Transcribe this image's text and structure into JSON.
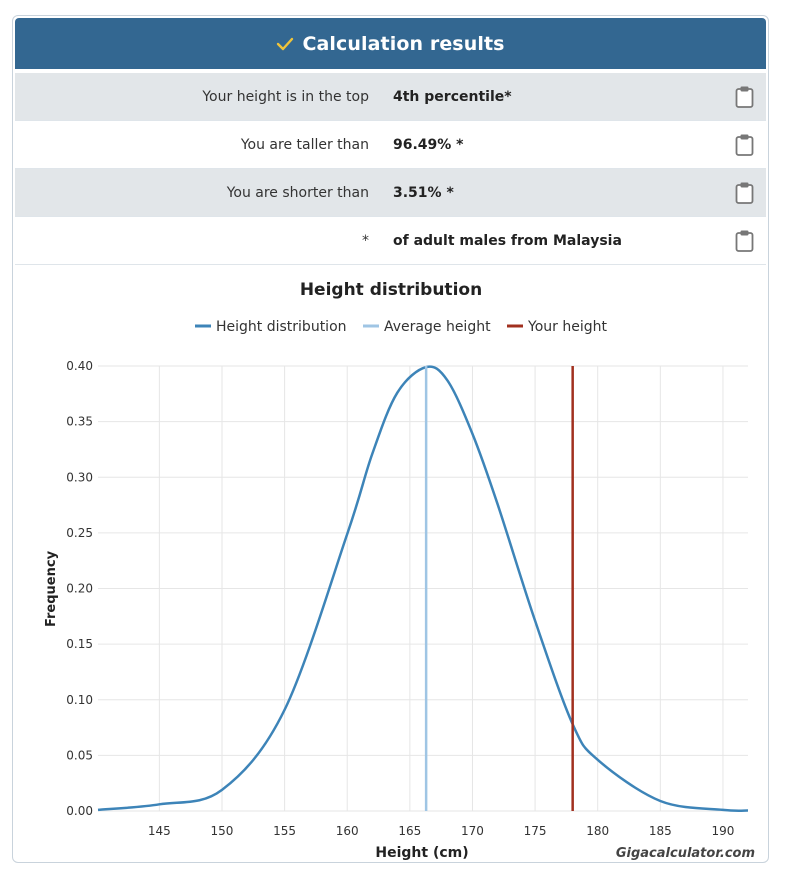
{
  "header": {
    "title": "Calculation results",
    "icon": "check-icon",
    "bg_color": "#336791"
  },
  "results": [
    {
      "label": "Your height is in the top",
      "value": "4th percentile*"
    },
    {
      "label": "You are taller than",
      "value": "96.49% *"
    },
    {
      "label": "You are shorter than",
      "value": "3.51% *"
    },
    {
      "label": "*",
      "value": "of adult males from Malaysia"
    }
  ],
  "chart_data": {
    "type": "line",
    "title": "Height distribution",
    "xlabel": "Height (cm)",
    "ylabel": "Frequency",
    "xlim": [
      140.1,
      192
    ],
    "ylim": [
      0,
      0.4
    ],
    "xticks": [
      "145",
      "150",
      "155",
      "160",
      "165",
      "170",
      "175",
      "180",
      "185",
      "190"
    ],
    "yticks": [
      "0.00",
      "0.05",
      "0.10",
      "0.15",
      "0.20",
      "0.25",
      "0.30",
      "0.35",
      "0.40"
    ],
    "grid": true,
    "legend_position": "top-center",
    "series": [
      {
        "name": "Height distribution",
        "color": "#3d84b8",
        "x": [
          140.1,
          145,
          150,
          155,
          160,
          162,
          164,
          166.3,
          168,
          170,
          172,
          175,
          178,
          180,
          185,
          190,
          192
        ],
        "y": [
          0.001,
          0.006,
          0.019,
          0.091,
          0.249,
          0.321,
          0.376,
          0.399,
          0.387,
          0.339,
          0.276,
          0.171,
          0.078,
          0.046,
          0.009,
          0.001,
          0.0004
        ]
      },
      {
        "name": "Average height",
        "color": "#9fc5e4",
        "x": [
          166.3,
          166.3
        ],
        "y": [
          0,
          0.4
        ]
      },
      {
        "name": "Your height",
        "color": "#a1301f",
        "x": [
          178,
          178
        ],
        "y": [
          0,
          0.4
        ]
      }
    ],
    "watermark": "Gigacalculator.com"
  }
}
